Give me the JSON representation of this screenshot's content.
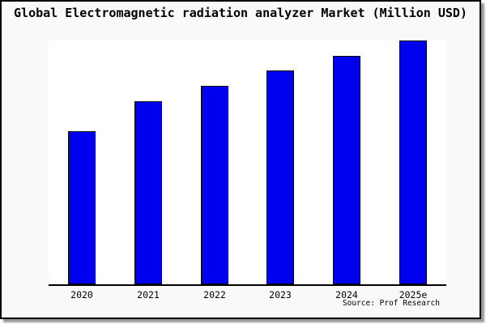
{
  "title": "Global Electromagnetic radiation analyzer Market (Million USD)",
  "source": "Source: Prof Research",
  "colors": {
    "bar_fill": "#0000F0",
    "bar_border": "#000000",
    "figure_background": "#F9F9F9",
    "plot_background": "#FFFFFF",
    "axis": "#000000",
    "frame_border": "#000000",
    "text": "#000000"
  },
  "chart_data": {
    "type": "bar",
    "title": "Global Electromagnetic radiation analyzer Market (Million USD)",
    "categories": [
      "2020",
      "2021",
      "2022",
      "2023",
      "2024",
      "2025e"
    ],
    "values": [
      62.8,
      75.1,
      81.4,
      87.7,
      93.7,
      100
    ],
    "units": "relative index (no y-axis tick labels shown in chart; 2025e bar = 100)",
    "xlabel": "",
    "ylabel": "",
    "ylim": [
      0,
      100.3
    ],
    "grid": false,
    "legend": false,
    "annotations": [
      "Source: Prof Research"
    ]
  }
}
